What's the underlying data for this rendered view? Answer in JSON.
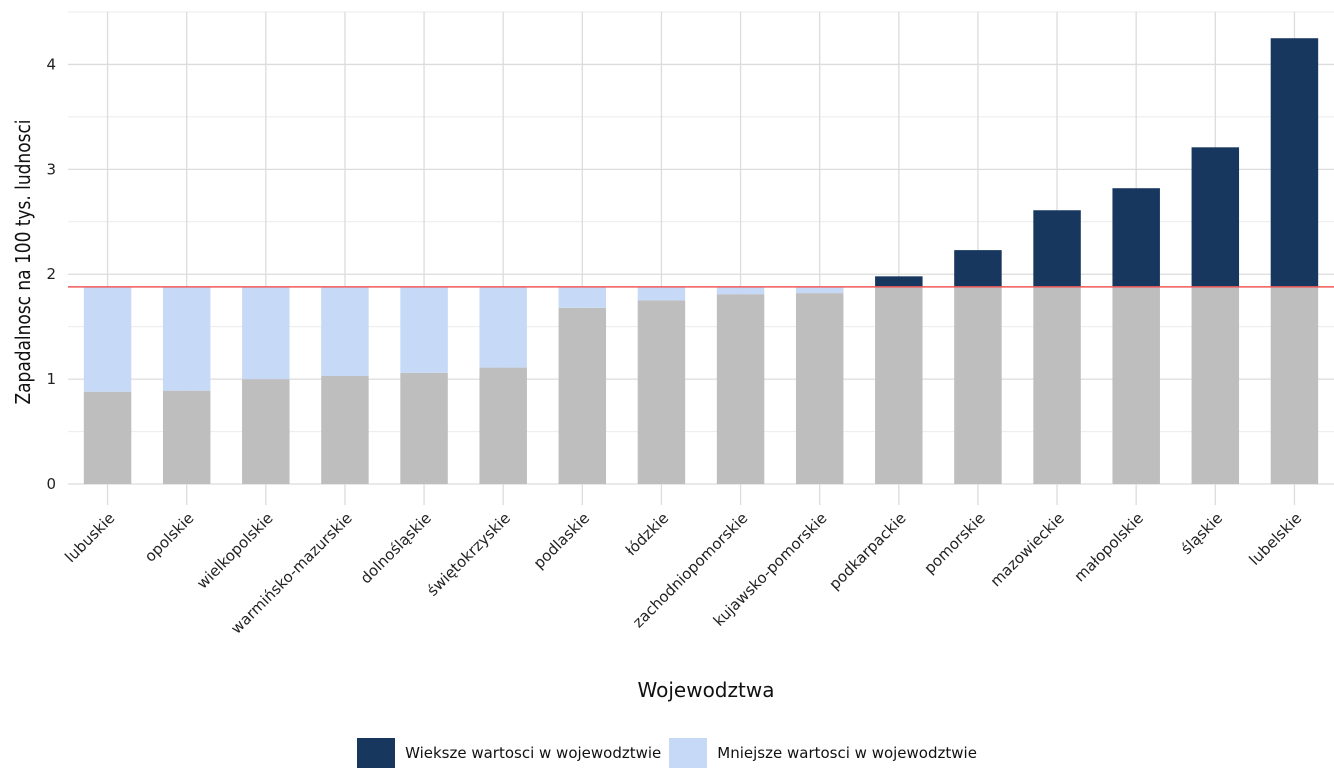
{
  "chart_data": {
    "type": "bar",
    "stacked": true,
    "xlabel": "Wojewodztwa",
    "ylabel": "Zapadalnosc na 100 tys. ludnosci",
    "ylim": [
      -0.2,
      4.5
    ],
    "yticks": [
      0,
      1,
      2,
      3,
      4
    ],
    "grid": true,
    "reference_line": 1.88,
    "categories": [
      "lubuskie",
      "opolskie",
      "wielkopolskie",
      "warmińsko-mazurskie",
      "dolnośląskie",
      "świętokrzyskie",
      "podlaskie",
      "łódzkie",
      "zachodniopomorskie",
      "kujawsko-pomorskie",
      "podkarpackie",
      "pomorskie",
      "mazowieckie",
      "małopolskie",
      "śląskie",
      "lubelskie"
    ],
    "values": [
      0.88,
      0.89,
      1.0,
      1.03,
      1.06,
      1.11,
      1.68,
      1.75,
      1.81,
      1.82,
      1.98,
      2.23,
      2.61,
      2.82,
      3.21,
      4.25
    ],
    "legend_position": "bottom",
    "series": [
      {
        "name": "Wieksze wartosci w wojewodztwie",
        "color": "#17375e"
      },
      {
        "name": "Mniejsze wartosci w wojewodztwie",
        "color": "#c6d9f6"
      }
    ],
    "base_color": "#bebebe",
    "reference_color": "#f05a5a"
  }
}
